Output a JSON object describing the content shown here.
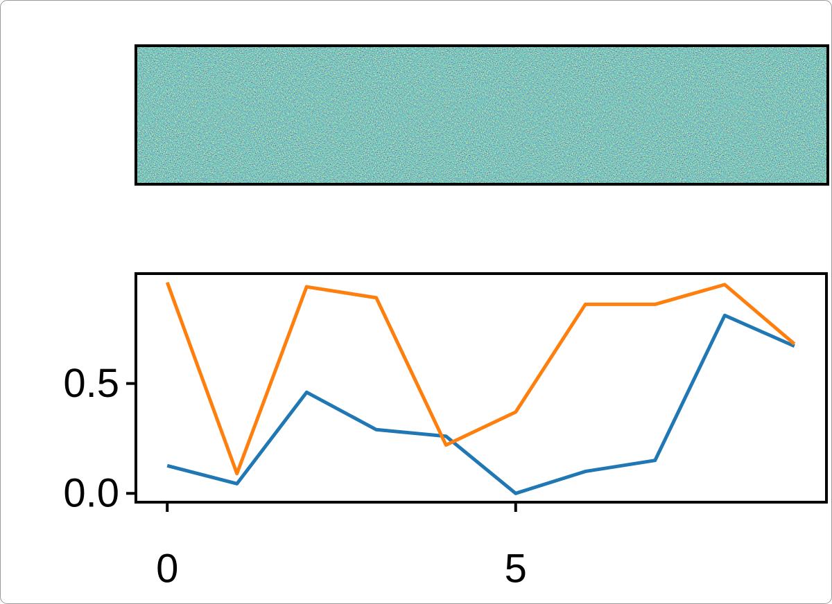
{
  "chart_data": {
    "type": "line",
    "x": [
      0,
      1,
      2,
      3,
      4,
      5,
      6,
      7,
      8,
      9
    ],
    "series": [
      {
        "color": "#1f77b4",
        "values": [
          0.126,
          0.044,
          0.46,
          0.29,
          0.26,
          0.0,
          0.1,
          0.15,
          0.81,
          0.67
        ]
      },
      {
        "color": "#ff7f0e",
        "values": [
          0.96,
          0.09,
          0.94,
          0.89,
          0.22,
          0.37,
          0.86,
          0.86,
          0.95,
          0.68
        ]
      }
    ],
    "xlim": [
      -0.45,
      9.46
    ],
    "ylim": [
      -0.04,
      1.0
    ],
    "xticks": [
      0,
      5
    ],
    "yticks": [
      {
        "value": 0,
        "label": "0.0"
      },
      0.5
    ]
  }
}
